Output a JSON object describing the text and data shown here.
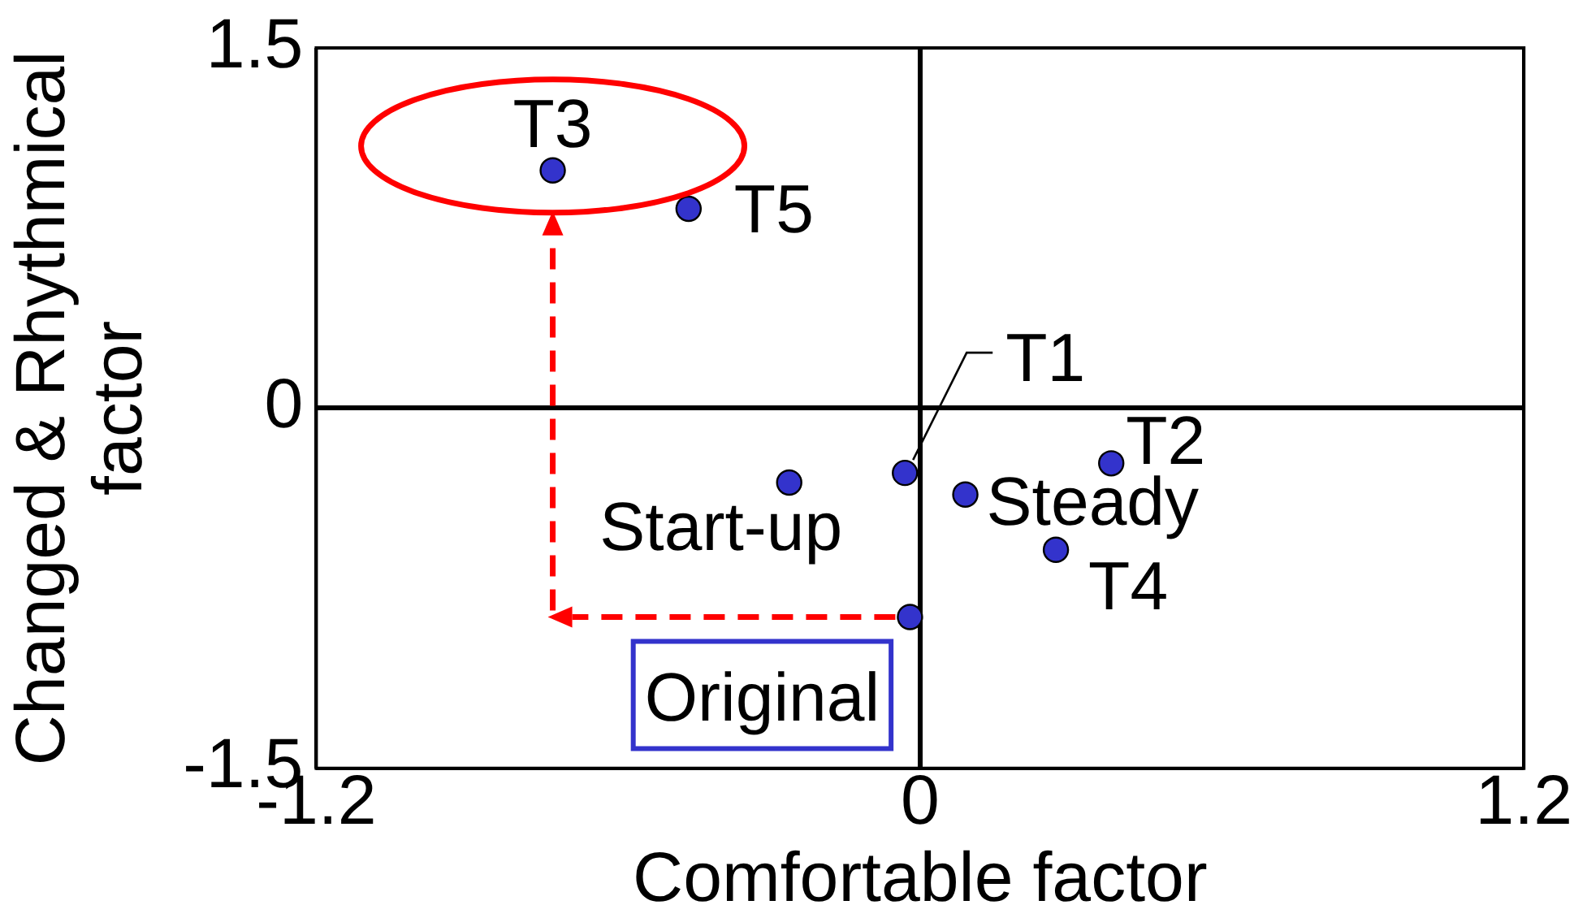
{
  "chart_data": {
    "type": "scatter",
    "xlabel": "Comfortable factor",
    "ylabel": "Changed & Rhythmical factor",
    "x": [
      -0.73,
      -0.46,
      -0.03,
      -0.26,
      0.09,
      0.38,
      0.27,
      -0.02
    ],
    "values": [
      0.99,
      0.83,
      -0.27,
      -0.31,
      -0.36,
      -0.23,
      -0.59,
      -0.87
    ],
    "color": "#3333cc",
    "marker": "circle",
    "xlim": [
      -1.2,
      1.2
    ],
    "ylim": [
      -1.5,
      1.5
    ],
    "xticks": [
      -1.2,
      0,
      1.2
    ],
    "yticks": [
      -1.5,
      0,
      1.5
    ],
    "grid": true,
    "annotations": [
      {
        "text": "T3",
        "x": -0.73,
        "y": 0.99
      },
      {
        "text": "T5",
        "x": -0.46,
        "y": 0.83
      },
      {
        "text": "T1",
        "x": -0.03,
        "y": -0.27
      },
      {
        "text": "Start-up",
        "x": -0.26,
        "y": -0.31
      },
      {
        "text": "Steady",
        "x": 0.09,
        "y": -0.36
      },
      {
        "text": "T2",
        "x": 0.38,
        "y": -0.23
      },
      {
        "text": "T4",
        "x": 0.27,
        "y": -0.59
      },
      {
        "text": "Original",
        "x": -0.02,
        "y": -0.87
      }
    ]
  }
}
